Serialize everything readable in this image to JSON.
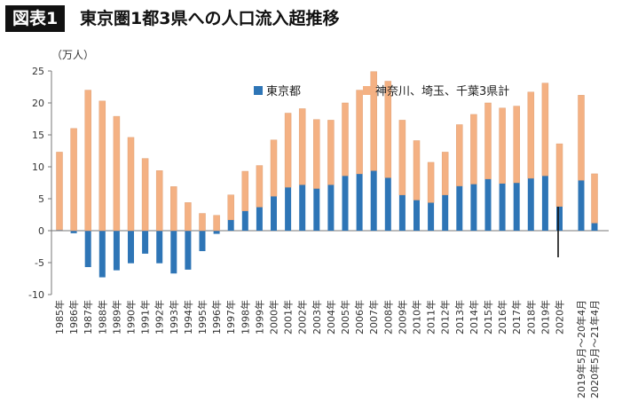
{
  "header": {
    "badge": "図表1",
    "title": "東京圏1都3県への人口流入超推移"
  },
  "chart_data": {
    "type": "bar",
    "stacked": true,
    "unit_label": "（万人）",
    "ylim": [
      -10,
      25
    ],
    "yticks": [
      25,
      20,
      15,
      10,
      5,
      0,
      -5,
      -10
    ],
    "grid": false,
    "legend_position": "top-center",
    "categories": [
      "1985年",
      "1986年",
      "1987年",
      "1988年",
      "1989年",
      "1990年",
      "1991年",
      "1992年",
      "1993年",
      "1994年",
      "1995年",
      "1996年",
      "1997年",
      "1998年",
      "1999年",
      "2000年",
      "2001年",
      "2002年",
      "2003年",
      "2004年",
      "2005年",
      "2006年",
      "2007年",
      "2008年",
      "2009年",
      "2010年",
      "2011年",
      "2012年",
      "2013年",
      "2014年",
      "2015年",
      "2016年",
      "2017年",
      "2018年",
      "2019年",
      "2020年",
      "2019年5月～20年4月",
      "2020年5月～21年4月"
    ],
    "series": [
      {
        "name": "東京都",
        "color": "#2e75b6",
        "values": [
          0.1,
          -0.4,
          -5.7,
          -7.3,
          -6.2,
          -5.1,
          -3.6,
          -5.1,
          -6.7,
          -6.1,
          -3.2,
          -0.5,
          1.7,
          3.1,
          3.7,
          5.4,
          6.8,
          7.2,
          6.6,
          7.2,
          8.6,
          8.9,
          9.4,
          8.3,
          5.6,
          4.8,
          4.4,
          5.6,
          7.0,
          7.3,
          8.1,
          7.4,
          7.5,
          8.2,
          8.6,
          3.8,
          7.9,
          1.2
        ]
      },
      {
        "name": "神奈川、埼玉、千葉3県計",
        "color": "#f4b183",
        "values": [
          12.2,
          16.0,
          22.0,
          20.3,
          17.9,
          14.6,
          11.3,
          9.4,
          6.9,
          4.4,
          2.7,
          2.4,
          3.9,
          6.2,
          6.5,
          8.8,
          11.6,
          11.9,
          10.8,
          10.1,
          11.4,
          13.1,
          15.5,
          15.1,
          11.7,
          9.3,
          6.3,
          6.7,
          9.6,
          10.9,
          11.9,
          11.8,
          12.0,
          13.5,
          14.5,
          9.8,
          13.3,
          7.7
        ]
      }
    ]
  }
}
